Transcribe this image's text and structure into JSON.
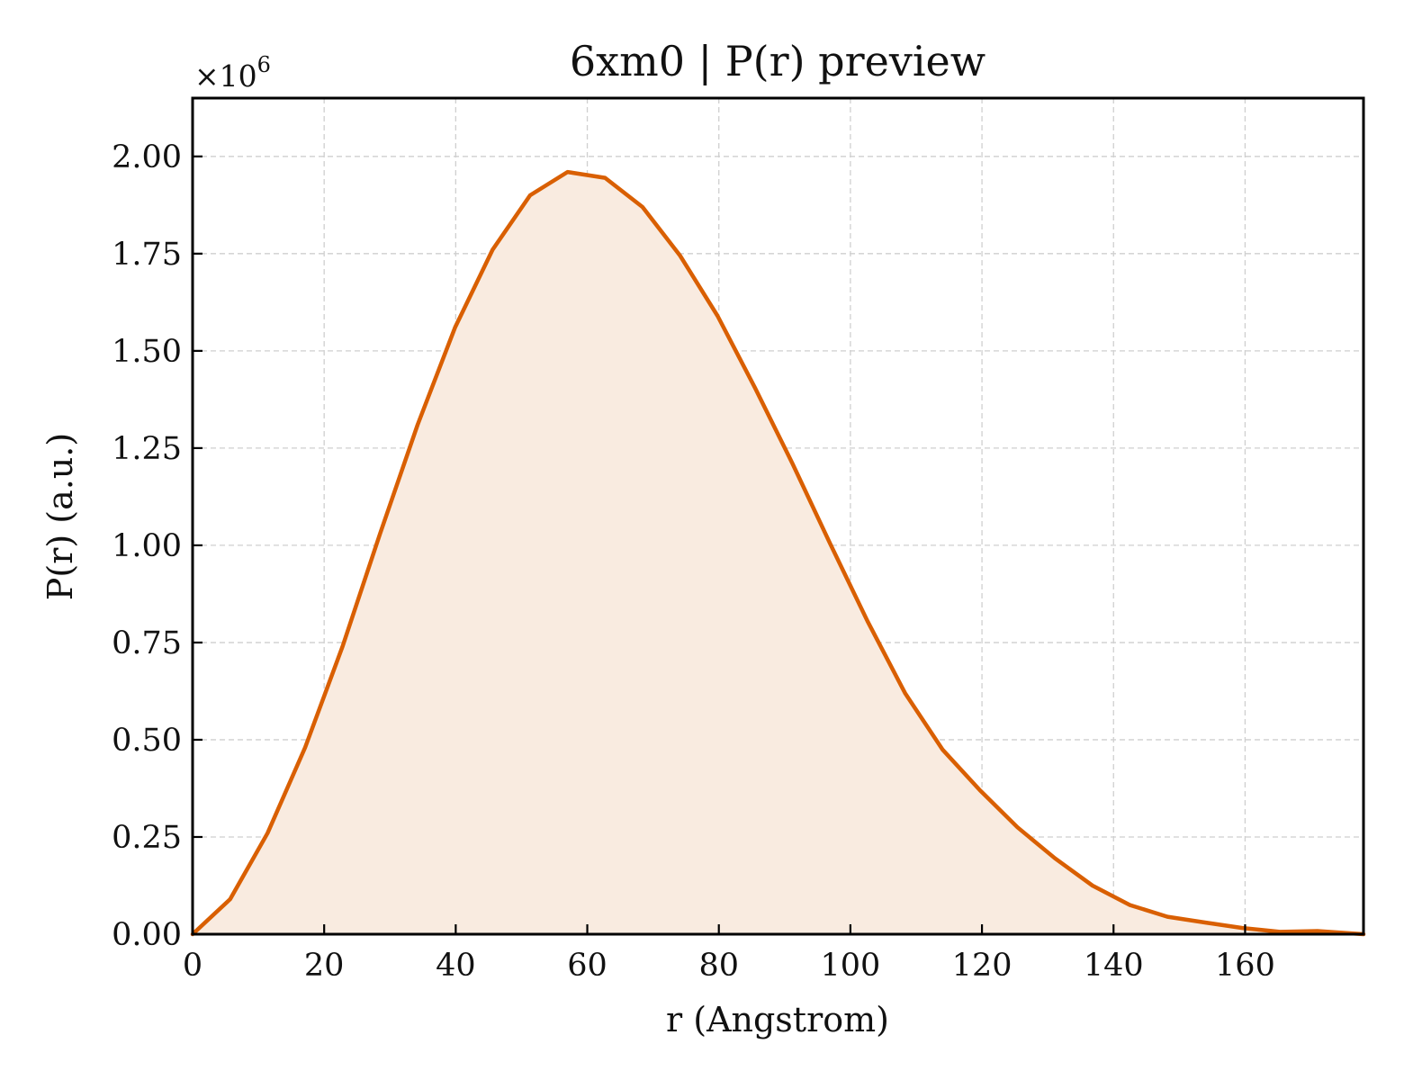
{
  "chart_data": {
    "type": "area",
    "title": "6xm0 | P(r) preview",
    "xlabel": "r (Angstrom)",
    "ylabel": "P(r) (a.u.)",
    "y_multiplier_base": "×10",
    "y_multiplier_exponent": "6",
    "xlim": [
      0,
      178
    ],
    "ylim": [
      0,
      2.15
    ],
    "x_ticks": [
      0,
      20,
      40,
      60,
      80,
      100,
      120,
      140,
      160
    ],
    "x_tick_labels": [
      "0",
      "20",
      "40",
      "60",
      "80",
      "100",
      "120",
      "140",
      "160"
    ],
    "y_ticks": [
      0,
      0.25,
      0.5,
      0.75,
      1.0,
      1.25,
      1.5,
      1.75,
      2.0
    ],
    "y_tick_labels": [
      "0.00",
      "0.25",
      "0.50",
      "0.75",
      "1.00",
      "1.25",
      "1.50",
      "1.75",
      "2.00"
    ],
    "grid": true,
    "line_color": "#d95f02",
    "fill_color": "#f9ebe0",
    "series": [
      {
        "x": [
          0,
          5.7,
          11.4,
          17.1,
          22.8,
          28.5,
          34.2,
          39.9,
          45.6,
          51.3,
          57.0,
          62.7,
          68.4,
          74.1,
          79.8,
          85.5,
          91.2,
          96.9,
          102.6,
          108.3,
          114.0,
          119.7,
          125.4,
          131.1,
          136.8,
          142.5,
          148.2,
          153.9,
          159.6,
          165.3,
          171.0,
          178.0
        ],
        "y": [
          0.0,
          0.09,
          0.26,
          0.48,
          0.74,
          1.03,
          1.31,
          1.56,
          1.76,
          1.9,
          1.96,
          1.945,
          1.87,
          1.745,
          1.59,
          1.405,
          1.21,
          1.005,
          0.805,
          0.62,
          0.475,
          0.37,
          0.275,
          0.195,
          0.125,
          0.075,
          0.045,
          0.03,
          0.016,
          0.006,
          0.008,
          0.0
        ]
      }
    ]
  }
}
